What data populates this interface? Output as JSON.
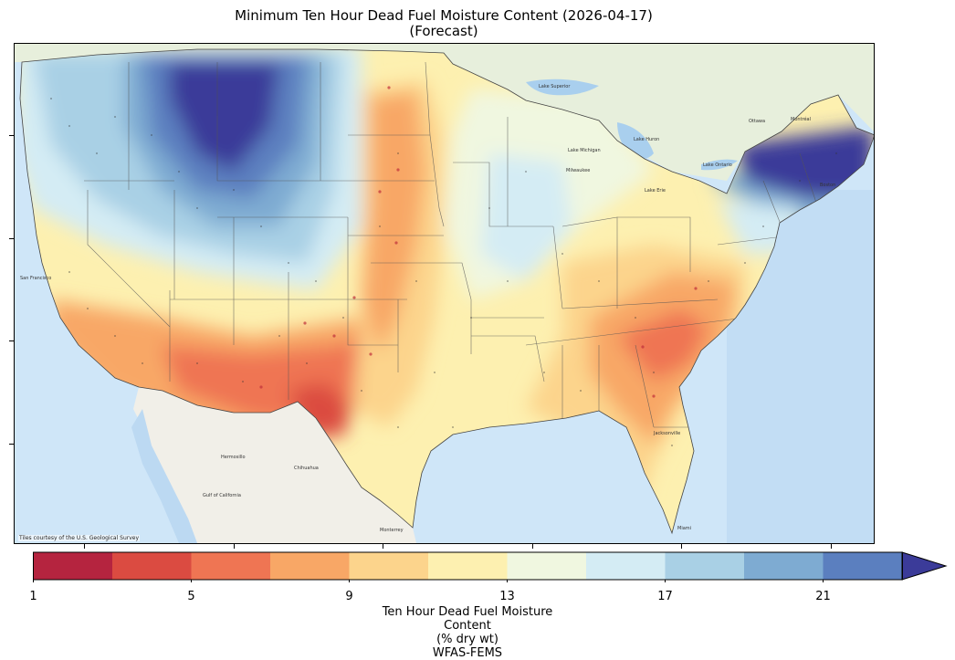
{
  "title": {
    "line1": "Minimum Ten Hour Dead Fuel Moisture Content (2026-04-17)",
    "line2": "(Forecast)"
  },
  "map": {
    "attribution": "Tiles courtesy of the U.S. Geological Survey",
    "basemap_labels": [
      "Hermosillo",
      "Chihuahua",
      "Monterrey",
      "Gulf of California",
      "San Francisco",
      "Jacksonville",
      "Miami",
      "Milwaukee",
      "Ottawa",
      "Montréal",
      "Lake Superior",
      "Lake Huron",
      "Lake Michigan",
      "Lake Ontario",
      "Lake Erie",
      "Boston"
    ],
    "region_colors": {
      "ocean": "#cfe6f8",
      "land": "#eeeee6",
      "mexico": "#f1efe8",
      "canada": "#e7efdc",
      "lakes": "#a9cfee"
    }
  },
  "colorbar": {
    "label_line1": "Ten Hour Dead Fuel Moisture Content",
    "label_line2": "(% dry wt)",
    "label_line3": "WFAS-FEMS",
    "ticks": [
      "1",
      "5",
      "9",
      "13",
      "17",
      "21"
    ],
    "bins": [
      1,
      3,
      5,
      7,
      9,
      11,
      13,
      15,
      17,
      19,
      21,
      23
    ],
    "extend": "max",
    "colors": [
      "#b5243f",
      "#db4b41",
      "#ef7553",
      "#f8a766",
      "#fcd48c",
      "#fdf0b0",
      "#f0f7e0",
      "#d4ecf4",
      "#a9d0e5",
      "#7eabd2",
      "#5b7fbf",
      "#3b3b99"
    ]
  }
}
